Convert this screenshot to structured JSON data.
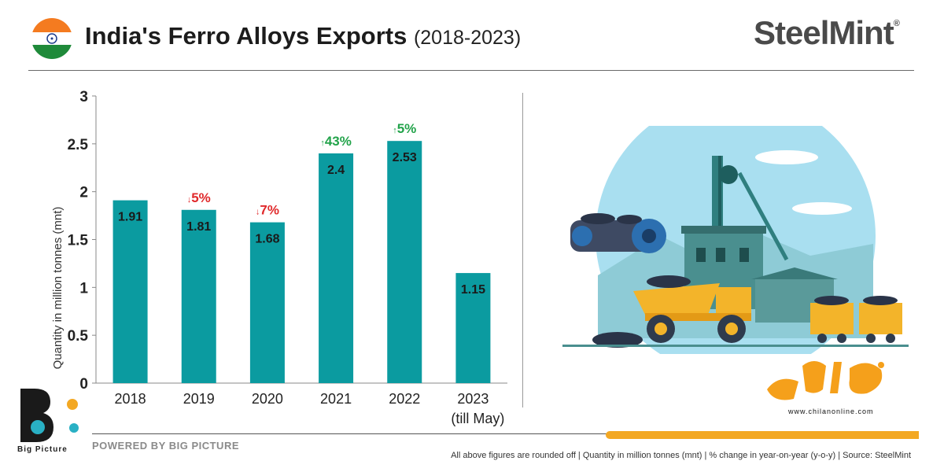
{
  "header": {
    "title": "India's Ferro Alloys Exports",
    "subtitle": "(2018-2023)",
    "brand": "SteelMint",
    "brand_mark": "®"
  },
  "chart_data": {
    "type": "bar",
    "categories": [
      "2018",
      "2019",
      "2020",
      "2021",
      "2022",
      "2023"
    ],
    "category_sublabels": [
      "",
      "",
      "",
      "",
      "",
      "(till May)"
    ],
    "values": [
      1.91,
      1.81,
      1.68,
      2.4,
      2.53,
      1.15
    ],
    "value_labels": [
      "1.91",
      "1.81",
      "1.68",
      "2.4",
      "2.53",
      "1.15"
    ],
    "changes": [
      {
        "text": "",
        "direction": ""
      },
      {
        "text": "5%",
        "direction": "down"
      },
      {
        "text": "7%",
        "direction": "down"
      },
      {
        "text": "43%",
        "direction": "up"
      },
      {
        "text": "5%",
        "direction": "up"
      },
      {
        "text": "",
        "direction": ""
      }
    ],
    "ylabel": "Quantity in million tonnes (mnt)",
    "xlabel": "",
    "ylim": [
      0,
      3
    ],
    "yticks": [
      0,
      0.5,
      1,
      1.5,
      2,
      2.5,
      3
    ],
    "ytick_labels": [
      "0",
      "0.5",
      "1",
      "1.5",
      "2",
      "2.5",
      "3"
    ],
    "bar_color": "#0b9ba0",
    "up_color": "#22a34a",
    "down_color": "#e0292b"
  },
  "footer": {
    "powered_by": "POWERED BY BIG PICTURE",
    "logo_label": "Big Picture",
    "note": "All above figures are rounded off | Quantity in million tonnes (mnt) | % change in year-on-year (y-o-y) | Source: SteelMint",
    "watermark_url": "www.chilanonline.com"
  },
  "colors": {
    "accent_orange": "#f3a823",
    "sky": "#a9dff0",
    "teal_building": "#4a8f8f"
  },
  "icons": [
    "india-flag-icon",
    "mining-illustration",
    "big-picture-logo-icon",
    "chilan-logo-icon"
  ]
}
